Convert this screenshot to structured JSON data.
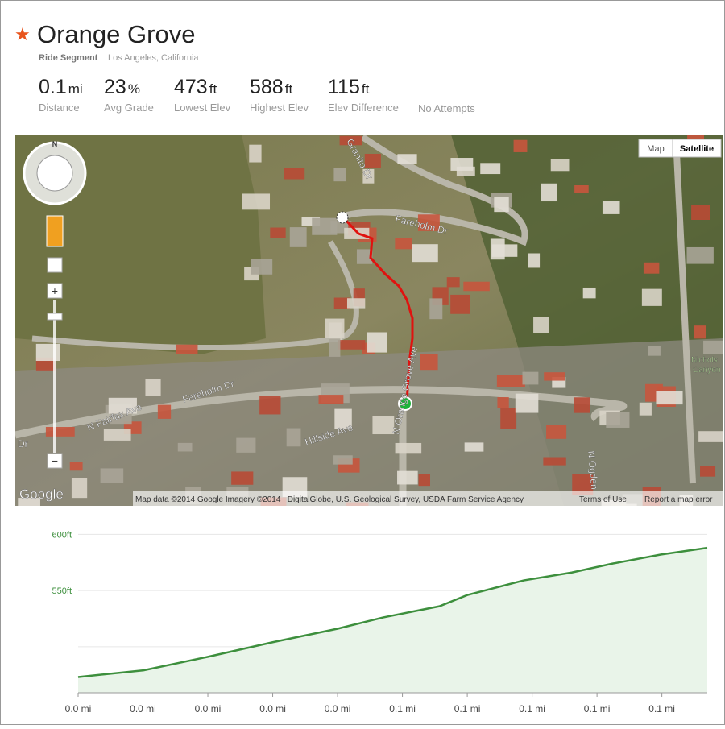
{
  "header": {
    "title": "Orange Grove",
    "segment_type": "Ride Segment",
    "location": "Los Angeles, California"
  },
  "stats": [
    {
      "value": 0.1,
      "unit": "mi",
      "label": "Distance"
    },
    {
      "value": 23,
      "unit": "%",
      "label": "Avg Grade"
    },
    {
      "value": 473,
      "unit": "ft",
      "label": "Lowest Elev"
    },
    {
      "value": 588,
      "unit": "ft",
      "label": "Highest Elev"
    },
    {
      "value": 115,
      "unit": "ft",
      "label": "Elev Difference"
    }
  ],
  "attempts": "No Attempts",
  "map": {
    "buttons": [
      "Map",
      "Satellite"
    ],
    "compass": "N",
    "logo": "Google",
    "attribution": "Map data ©2014 Google Imagery ©2014 , DigitalGlobe, U.S. Geological Survey, USDA Farm Service Agency",
    "terms": "Terms of Use",
    "report": "Report a map error",
    "labels": [
      "Granito Dr",
      "Fareholm Dr",
      "Fareholm Dr",
      "N Orange Grove Ave",
      "Hillside Ave",
      "N Fairfax Ave",
      "N Ogden",
      "Nichols",
      "Canyon",
      "Dr"
    ]
  },
  "chart_data": {
    "type": "area",
    "x": [
      0,
      0.0101,
      0.02,
      0.03,
      0.04,
      0.047,
      0.0557,
      0.06,
      0.0687,
      0.0761,
      0.0824,
      0.0898,
      0.097
    ],
    "values": [
      473,
      479,
      491,
      504,
      516,
      526,
      536,
      546,
      559,
      566,
      574,
      582,
      588
    ],
    "color": "#3d8f3d",
    "fill": "#e9f4e9",
    "xlim": [
      0,
      0.097
    ],
    "ylim": [
      459,
      606
    ],
    "yticks": [
      {
        "value": 600,
        "label": "600ft"
      },
      {
        "value": 550,
        "label": "550ft"
      },
      {
        "value": 500,
        "label": null
      }
    ],
    "xticks": [
      {
        "value": 0,
        "label": "0.0 mi"
      },
      {
        "value": 0.01,
        "label": "0.0 mi"
      },
      {
        "value": 0.02,
        "label": "0.0 mi"
      },
      {
        "value": 0.03,
        "label": "0.0 mi"
      },
      {
        "value": 0.04,
        "label": "0.0 mi"
      },
      {
        "value": 0.05,
        "label": "0.1 mi"
      },
      {
        "value": 0.06,
        "label": "0.1 mi"
      },
      {
        "value": 0.07,
        "label": "0.1 mi"
      },
      {
        "value": 0.08,
        "label": "0.1 mi"
      },
      {
        "value": 0.09,
        "label": "0.1 mi"
      }
    ],
    "grid": true
  }
}
